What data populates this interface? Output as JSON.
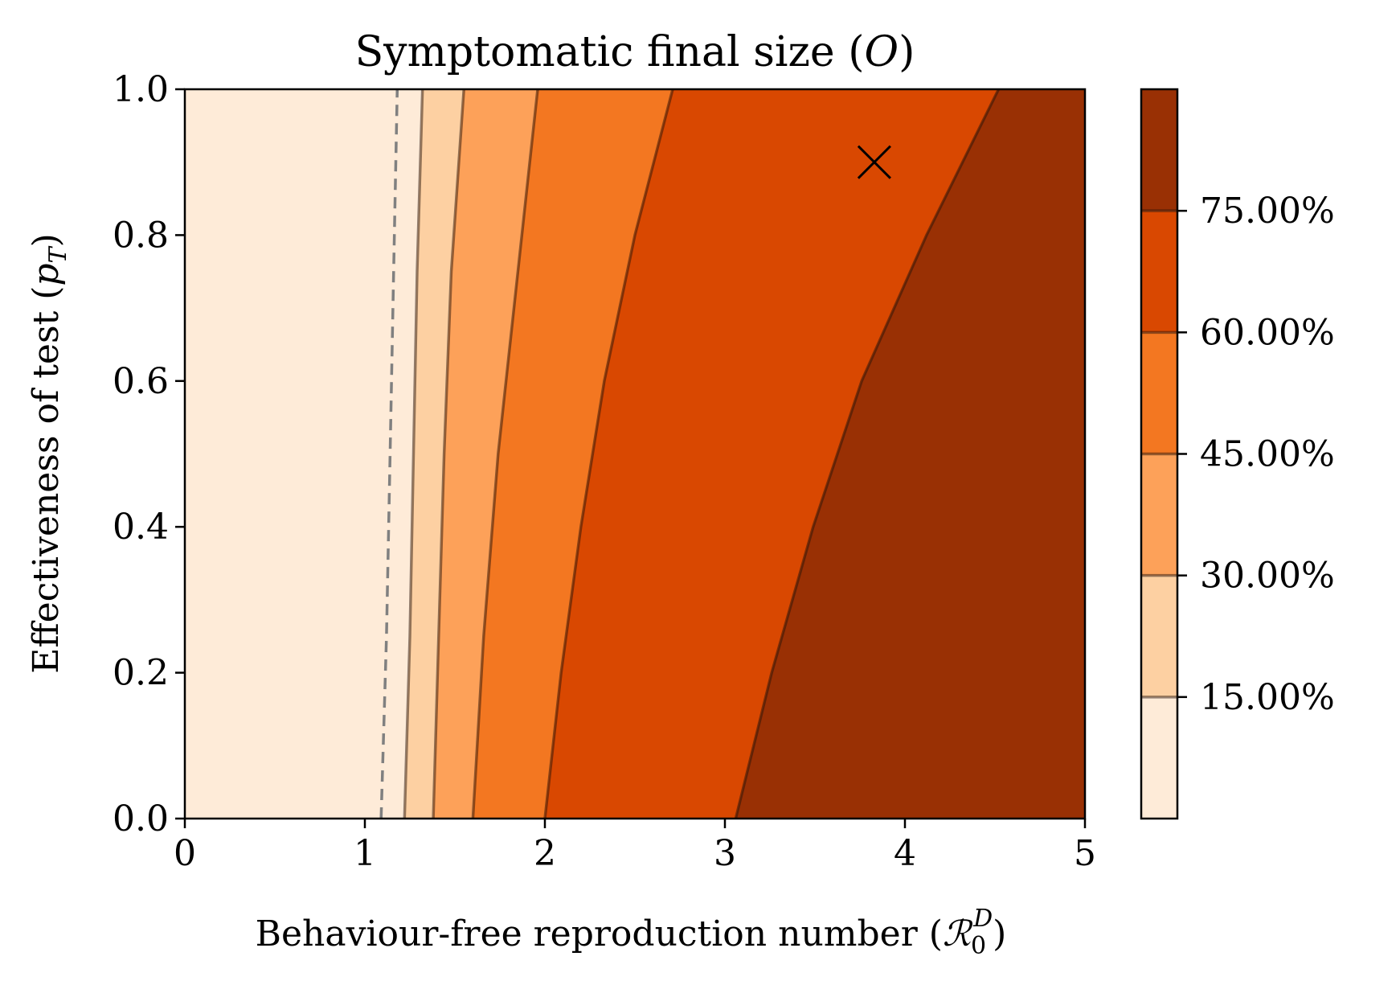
{
  "chart_data": {
    "type": "contourf",
    "title": "Symptomatic final size (O)",
    "title_parts": {
      "text": "Symptomatic final size (",
      "italic": "O",
      "close": ")"
    },
    "xlabel": "Behaviour-free reproduction number (R0D)",
    "xlabel_parts": {
      "text": "Behaviour-free reproduction number (",
      "symbol": "ℛ",
      "sub": "0",
      "sup": "D",
      "close": ")"
    },
    "ylabel": "Effectiveness of test (pT)",
    "ylabel_parts": {
      "text": "Effectiveness of test (",
      "italic": "p",
      "sub": "T",
      "close": ")"
    },
    "xlim": [
      0,
      5
    ],
    "ylim": [
      0,
      1
    ],
    "xticks": [
      0,
      1,
      2,
      3,
      4,
      5
    ],
    "xtick_labels": [
      "0",
      "1",
      "2",
      "3",
      "4",
      "5"
    ],
    "yticks": [
      0.0,
      0.2,
      0.4,
      0.6,
      0.8,
      1.0
    ],
    "ytick_labels": [
      "0.0",
      "0.2",
      "0.4",
      "0.6",
      "0.8",
      "1.0"
    ],
    "levels": [
      0.15,
      0.3,
      0.45,
      0.6,
      0.75
    ],
    "colorbar_ticks": [
      0.15,
      0.3,
      0.45,
      0.6,
      0.75
    ],
    "colorbar_labels": [
      "15.00%",
      "30.00%",
      "45.00%",
      "60.00%",
      "75.00%"
    ],
    "colorbar_range": [
      0.0,
      0.9
    ],
    "band_colors": [
      "#feebd8",
      "#fdd0a2",
      "#fda159",
      "#f37721",
      "#d94801",
      "#993004"
    ],
    "contour_lines": [
      {
        "level": 0.15,
        "points": [
          [
            1.22,
            0.0
          ],
          [
            1.25,
            0.25
          ],
          [
            1.27,
            0.5
          ],
          [
            1.29,
            0.75
          ],
          [
            1.32,
            1.0
          ]
        ]
      },
      {
        "level": 0.3,
        "points": [
          [
            1.38,
            0.0
          ],
          [
            1.41,
            0.25
          ],
          [
            1.44,
            0.5
          ],
          [
            1.48,
            0.75
          ],
          [
            1.55,
            1.0
          ]
        ]
      },
      {
        "level": 0.45,
        "points": [
          [
            1.6,
            0.0
          ],
          [
            1.66,
            0.25
          ],
          [
            1.74,
            0.5
          ],
          [
            1.85,
            0.75
          ],
          [
            1.96,
            1.0
          ]
        ]
      },
      {
        "level": 0.6,
        "points": [
          [
            2.0,
            0.0
          ],
          [
            2.09,
            0.2
          ],
          [
            2.2,
            0.4
          ],
          [
            2.33,
            0.6
          ],
          [
            2.5,
            0.8
          ],
          [
            2.71,
            1.0
          ]
        ]
      },
      {
        "level": 0.75,
        "points": [
          [
            3.06,
            0.0
          ],
          [
            3.26,
            0.2
          ],
          [
            3.49,
            0.4
          ],
          [
            3.76,
            0.6
          ],
          [
            4.12,
            0.8
          ],
          [
            4.52,
            1.0
          ]
        ]
      }
    ],
    "threshold_line": {
      "style": "dashed",
      "color": "#808080",
      "points": [
        [
          1.09,
          0.0
        ],
        [
          1.12,
          0.25
        ],
        [
          1.14,
          0.5
        ],
        [
          1.16,
          0.75
        ],
        [
          1.18,
          1.0
        ]
      ]
    },
    "marker": {
      "symbol": "x",
      "x": 3.83,
      "y": 0.9
    }
  }
}
